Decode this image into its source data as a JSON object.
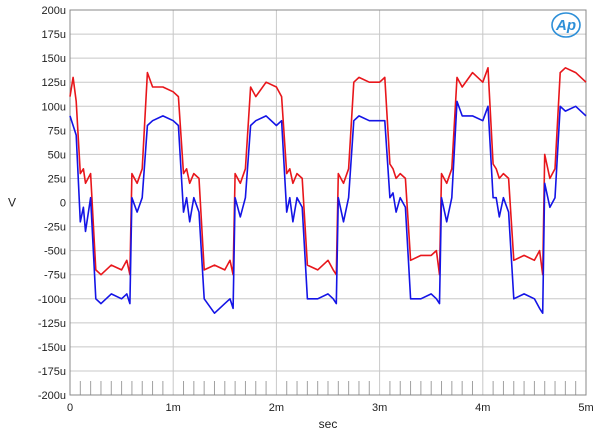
{
  "chart_data": {
    "type": "line",
    "title": "",
    "xlabel": "sec",
    "ylabel": "V",
    "xlim": [
      0,
      0.005
    ],
    "ylim": [
      -0.0002,
      0.0002
    ],
    "grid": true,
    "x_ticks": [
      {
        "value": 0,
        "label": "0"
      },
      {
        "value": 0.001,
        "label": "1m"
      },
      {
        "value": 0.002,
        "label": "2m"
      },
      {
        "value": 0.003,
        "label": "3m"
      },
      {
        "value": 0.004,
        "label": "4m"
      },
      {
        "value": 0.005,
        "label": "5m"
      }
    ],
    "y_ticks": [
      {
        "value": 0.0002,
        "label": "200u"
      },
      {
        "value": 0.000175,
        "label": "175u"
      },
      {
        "value": 0.00015,
        "label": "150u"
      },
      {
        "value": 0.000125,
        "label": "125u"
      },
      {
        "value": 0.0001,
        "label": "100u"
      },
      {
        "value": 7.5e-05,
        "label": "75u"
      },
      {
        "value": 5e-05,
        "label": "50u"
      },
      {
        "value": 2.5e-05,
        "label": "25u"
      },
      {
        "value": 0,
        "label": "0"
      },
      {
        "value": -2.5e-05,
        "label": "-25u"
      },
      {
        "value": -5e-05,
        "label": "-50u"
      },
      {
        "value": -7.5e-05,
        "label": "-75u"
      },
      {
        "value": -0.0001,
        "label": "-100u"
      },
      {
        "value": -0.000125,
        "label": "-125u"
      },
      {
        "value": -0.00015,
        "label": "-150u"
      },
      {
        "value": -0.000175,
        "label": "-175u"
      },
      {
        "value": -0.0002,
        "label": "-200u"
      }
    ],
    "series": [
      {
        "color": "#e8161b",
        "x": [
          0,
          3e-05,
          6e-05,
          0.0001,
          0.00013,
          0.00015,
          0.0002,
          0.00025,
          0.0003,
          0.0004,
          0.0005,
          0.00055,
          0.00058,
          0.0006,
          0.00065,
          0.0007,
          0.00075,
          0.0008,
          0.0009,
          0.001,
          0.00105,
          0.0011,
          0.00113,
          0.00116,
          0.0012,
          0.00125,
          0.0013,
          0.0014,
          0.0015,
          0.00155,
          0.00158,
          0.0016,
          0.00165,
          0.0017,
          0.00175,
          0.0018,
          0.0019,
          0.002,
          0.00205,
          0.0021,
          0.00213,
          0.00216,
          0.0022,
          0.00225,
          0.0023,
          0.0024,
          0.0025,
          0.00255,
          0.00258,
          0.0026,
          0.00265,
          0.0027,
          0.00275,
          0.0028,
          0.0029,
          0.003,
          0.00305,
          0.0031,
          0.00313,
          0.00316,
          0.0032,
          0.00325,
          0.0033,
          0.0034,
          0.0035,
          0.00355,
          0.00358,
          0.0036,
          0.00365,
          0.0037,
          0.00375,
          0.0038,
          0.0039,
          0.004,
          0.00405,
          0.0041,
          0.00413,
          0.00416,
          0.0042,
          0.00425,
          0.0043,
          0.0044,
          0.0045,
          0.00455,
          0.00458,
          0.0046,
          0.00465,
          0.0047,
          0.00475,
          0.0048,
          0.0049,
          0.005,
          0.005
        ],
        "y": [
          0.00011,
          0.00013,
          0.000105,
          3e-05,
          3.5e-05,
          2e-05,
          3e-05,
          -7e-05,
          -7.5e-05,
          -6.5e-05,
          -7e-05,
          -6e-05,
          -7.5e-05,
          3e-05,
          2e-05,
          3.5e-05,
          0.000135,
          0.00012,
          0.00012,
          0.000115,
          0.00011,
          3e-05,
          3.5e-05,
          2e-05,
          3e-05,
          2.5e-05,
          -7e-05,
          -6.5e-05,
          -7e-05,
          -6e-05,
          -7.5e-05,
          3e-05,
          2e-05,
          3.5e-05,
          0.00012,
          0.00011,
          0.000125,
          0.00012,
          0.00011,
          3e-05,
          3.5e-05,
          2e-05,
          3e-05,
          2.5e-05,
          -6.5e-05,
          -7e-05,
          -6e-05,
          -7e-05,
          -7.5e-05,
          3e-05,
          2e-05,
          3.5e-05,
          0.000125,
          0.00013,
          0.000125,
          0.000125,
          0.00013,
          4e-05,
          3.5e-05,
          2.5e-05,
          3e-05,
          2.5e-05,
          -6e-05,
          -5.5e-05,
          -5.5e-05,
          -5e-05,
          -7.5e-05,
          3e-05,
          2e-05,
          3.5e-05,
          0.00013,
          0.00012,
          0.000135,
          0.000125,
          0.00014,
          4e-05,
          3.5e-05,
          2.5e-05,
          3e-05,
          2.5e-05,
          -6e-05,
          -5.5e-05,
          -6e-05,
          -5e-05,
          -7.5e-05,
          5e-05,
          2.5e-05,
          3.5e-05,
          0.000135,
          0.00014,
          0.000135,
          0.000125,
          0.000125
        ]
      },
      {
        "color": "#1414e6",
        "x": [
          0,
          3e-05,
          6e-05,
          0.0001,
          0.00013,
          0.00015,
          0.0002,
          0.00025,
          0.0003,
          0.0004,
          0.0005,
          0.00055,
          0.00058,
          0.0006,
          0.00065,
          0.0007,
          0.00075,
          0.0008,
          0.0009,
          0.001,
          0.00105,
          0.0011,
          0.00113,
          0.00116,
          0.0012,
          0.00125,
          0.0013,
          0.0014,
          0.0015,
          0.00155,
          0.00158,
          0.0016,
          0.00165,
          0.0017,
          0.00175,
          0.0018,
          0.0019,
          0.002,
          0.00205,
          0.0021,
          0.00213,
          0.00216,
          0.0022,
          0.00225,
          0.0023,
          0.0024,
          0.0025,
          0.00255,
          0.00258,
          0.0026,
          0.00265,
          0.0027,
          0.00275,
          0.0028,
          0.0029,
          0.003,
          0.00305,
          0.0031,
          0.00313,
          0.00316,
          0.0032,
          0.00325,
          0.0033,
          0.0034,
          0.0035,
          0.00355,
          0.00358,
          0.0036,
          0.00365,
          0.0037,
          0.00375,
          0.0038,
          0.0039,
          0.004,
          0.00405,
          0.0041,
          0.00413,
          0.00416,
          0.0042,
          0.00425,
          0.0043,
          0.0044,
          0.0045,
          0.00455,
          0.00458,
          0.0046,
          0.00465,
          0.0047,
          0.00475,
          0.0048,
          0.0049,
          0.005,
          0.005
        ],
        "y": [
          9e-05,
          8e-05,
          7e-05,
          -2e-05,
          -5e-06,
          -3e-05,
          5e-06,
          -0.0001,
          -0.000105,
          -9.5e-05,
          -0.0001,
          -9.5e-05,
          -0.000105,
          5e-06,
          -1e-05,
          5e-06,
          8e-05,
          8.5e-05,
          9e-05,
          8.5e-05,
          8e-05,
          -1e-05,
          5e-06,
          -2e-05,
          5e-06,
          -1e-05,
          -0.0001,
          -0.000115,
          -0.000105,
          -0.0001,
          -0.00011,
          5e-06,
          -1.5e-05,
          5e-06,
          8e-05,
          8.5e-05,
          9e-05,
          8e-05,
          8.5e-05,
          -1e-05,
          5e-06,
          -2e-05,
          5e-06,
          -5e-06,
          -0.0001,
          -0.0001,
          -9.5e-05,
          -0.0001,
          -0.000105,
          5e-06,
          -2e-05,
          5e-06,
          8.5e-05,
          9e-05,
          8.5e-05,
          8.5e-05,
          8.5e-05,
          5e-06,
          1e-05,
          -1e-05,
          5e-06,
          -5e-06,
          -0.0001,
          -0.0001,
          -9.5e-05,
          -0.0001,
          -0.000105,
          5e-06,
          -2e-05,
          5e-06,
          0.000105,
          9e-05,
          9e-05,
          8.5e-05,
          0.0001,
          5e-06,
          5e-06,
          -1.5e-05,
          5e-06,
          -1e-05,
          -0.0001,
          -9.5e-05,
          -0.0001,
          -0.00011,
          -0.000115,
          2e-05,
          -5e-06,
          5e-06,
          0.0001,
          9.5e-05,
          0.0001,
          9e-05,
          9e-05
        ]
      }
    ]
  },
  "colors": {
    "grid": "#c8c8c8",
    "frame": "#888888",
    "minor_tick": "#a0a0a0",
    "logo_blue": "#2d8fd8",
    "logo_red": "#d22222"
  },
  "logo": {
    "text": "Ap"
  }
}
